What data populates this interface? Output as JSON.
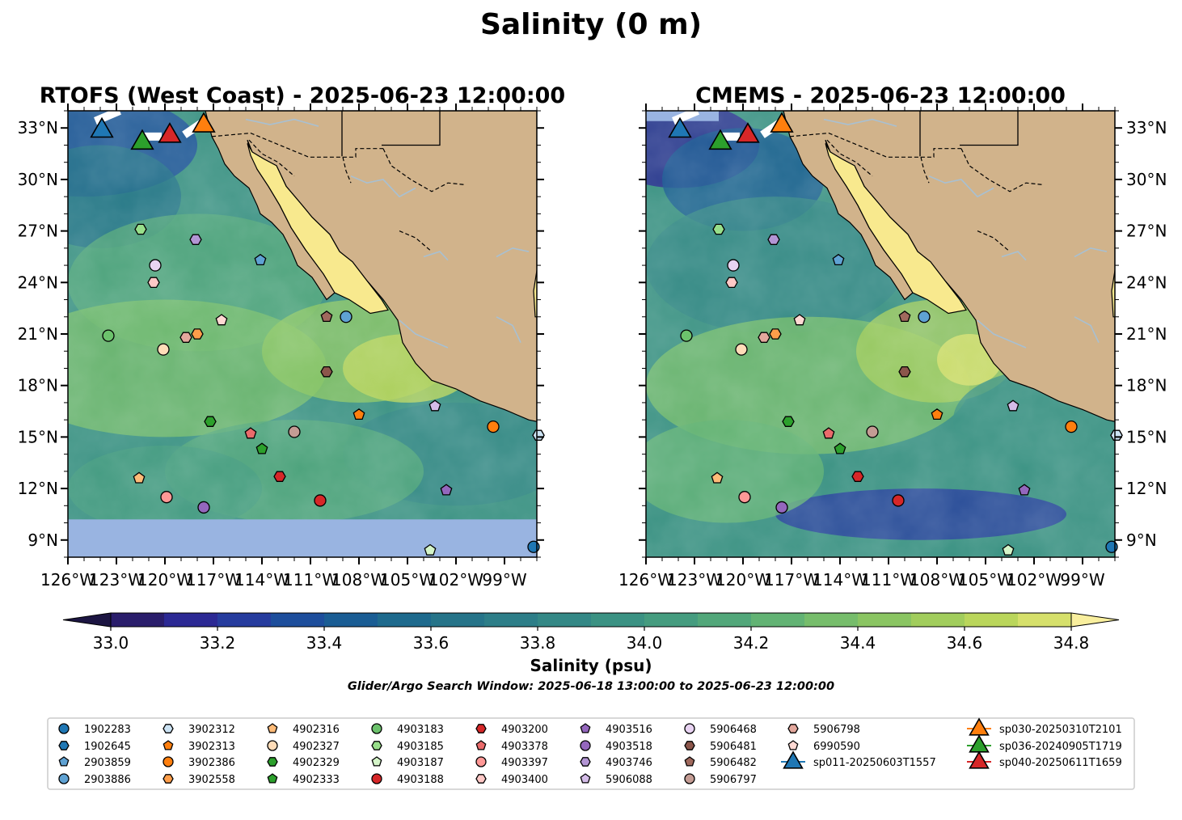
{
  "title": "Salinity (0 m)",
  "panels": [
    {
      "title": "RTOFS (West Coast) - 2025-06-23 12:00:00",
      "model": "rtofs"
    },
    {
      "title": "CMEMS - 2025-06-23 12:00:00",
      "model": "cmems"
    }
  ],
  "colorbar": {
    "label": "Salinity (psu)",
    "ticks": [
      "33.0",
      "33.2",
      "33.4",
      "33.6",
      "33.8",
      "34.0",
      "34.2",
      "34.4",
      "34.6",
      "34.8"
    ],
    "colors": [
      "#2a1d6b",
      "#2c2994",
      "#263c9e",
      "#1d4e9c",
      "#1a5d94",
      "#1e6a8d",
      "#267489",
      "#2d7e88",
      "#348886",
      "#3b9283",
      "#459c7f",
      "#52a77a",
      "#62b374",
      "#76bd6b",
      "#8ac562",
      "#a1cd5c",
      "#bad65b",
      "#d6e06b"
    ],
    "under_color": "#1c1542",
    "over_color": "#f9ef9e"
  },
  "subtitle": "Glider/Argo Search Window: 2025-06-18 13:00:00 to 2025-06-23 12:00:00",
  "colors": {
    "land": "#d1b38b",
    "nodata": "#99b4e1",
    "river": "#a8c0d2",
    "gulf": "#f8e98e"
  },
  "chart_data": {
    "type": "scatter",
    "title": "Salinity (0 m)",
    "xlim": [
      -126,
      -97
    ],
    "ylim": [
      8,
      34
    ],
    "xticks": [
      "126°W",
      "123°W",
      "120°W",
      "117°W",
      "114°W",
      "111°W",
      "108°W",
      "105°W",
      "102°W",
      "99°W"
    ],
    "yticks": [
      "33°N",
      "30°N",
      "27°N",
      "24°N",
      "21°N",
      "18°N",
      "15°N",
      "12°N",
      "9°N"
    ],
    "floats": [
      {
        "id": "1902283",
        "marker": "circle",
        "color": "#1f77b4",
        "lon": -97.2,
        "lat": 8.6
      },
      {
        "id": "1902645",
        "marker": "hexagon",
        "color": "#1f77b4",
        "lon": -96.9,
        "lat": 15.1
      },
      {
        "id": "2903859",
        "marker": "pentagon",
        "color": "#5fa2d3",
        "lon": -114.1,
        "lat": 25.3
      },
      {
        "id": "2903886",
        "marker": "circle",
        "color": "#5fa2d3",
        "lon": -108.8,
        "lat": 22.0
      },
      {
        "id": "3902312",
        "marker": "hexagon",
        "color": "#cce3f4",
        "lon": -96.9,
        "lat": 15.1
      },
      {
        "id": "3902313",
        "marker": "pentagon",
        "color": "#ff7f0e",
        "lon": -108.0,
        "lat": 16.3
      },
      {
        "id": "3902386",
        "marker": "circle",
        "color": "#ff7f0e",
        "lon": -99.7,
        "lat": 15.6
      },
      {
        "id": "3902558",
        "marker": "hexagon",
        "color": "#ff9e4a",
        "lon": -118.0,
        "lat": 21.0
      },
      {
        "id": "4902316",
        "marker": "pentagon",
        "color": "#ffbb78",
        "lon": -121.6,
        "lat": 12.6
      },
      {
        "id": "4902327",
        "marker": "circle",
        "color": "#ffdcb8",
        "lon": -120.1,
        "lat": 20.1
      },
      {
        "id": "4902329",
        "marker": "hexagon",
        "color": "#2ca02c",
        "lon": -117.2,
        "lat": 15.9
      },
      {
        "id": "4902333",
        "marker": "pentagon",
        "color": "#2ca02c",
        "lon": -114.0,
        "lat": 14.3
      },
      {
        "id": "4903183",
        "marker": "circle",
        "color": "#6cc26c",
        "lon": -123.5,
        "lat": 20.9
      },
      {
        "id": "4903185",
        "marker": "hexagon",
        "color": "#98df8a",
        "lon": -121.5,
        "lat": 27.1
      },
      {
        "id": "4903187",
        "marker": "pentagon",
        "color": "#d5f5c9",
        "lon": -103.6,
        "lat": 8.4
      },
      {
        "id": "4903188",
        "marker": "circle",
        "color": "#d62728",
        "lon": -110.4,
        "lat": 11.3
      },
      {
        "id": "4903200",
        "marker": "hexagon",
        "color": "#d62728",
        "lon": -112.9,
        "lat": 12.7
      },
      {
        "id": "4903378",
        "marker": "pentagon",
        "color": "#ea6b6b",
        "lon": -114.7,
        "lat": 15.2
      },
      {
        "id": "4903397",
        "marker": "circle",
        "color": "#ff9896",
        "lon": -119.9,
        "lat": 11.5
      },
      {
        "id": "4903400",
        "marker": "hexagon",
        "color": "#ffc8c6",
        "lon": -120.7,
        "lat": 24.0
      },
      {
        "id": "4903516",
        "marker": "pentagon",
        "color": "#9467bd",
        "lon": -102.6,
        "lat": 11.9
      },
      {
        "id": "4903518",
        "marker": "circle",
        "color": "#9467bd",
        "lon": -117.6,
        "lat": 10.9
      },
      {
        "id": "4903746",
        "marker": "hexagon",
        "color": "#b395d4",
        "lon": -118.1,
        "lat": 26.5
      },
      {
        "id": "5906088",
        "marker": "pentagon",
        "color": "#d4bce8",
        "lon": -103.3,
        "lat": 16.8
      },
      {
        "id": "5906468",
        "marker": "circle",
        "color": "#e8d3f2",
        "lon": -120.6,
        "lat": 25.0
      },
      {
        "id": "5906481",
        "marker": "hexagon",
        "color": "#8c564b",
        "lon": -110.0,
        "lat": 18.8
      },
      {
        "id": "5906482",
        "marker": "pentagon",
        "color": "#a0695d",
        "lon": -110.0,
        "lat": 22.0
      },
      {
        "id": "5906797",
        "marker": "circle",
        "color": "#c49c94",
        "lon": -112.0,
        "lat": 15.3
      },
      {
        "id": "5906798",
        "marker": "hexagon",
        "color": "#e4a89d",
        "lon": -118.7,
        "lat": 20.8
      },
      {
        "id": "6990590",
        "marker": "pentagon",
        "color": "#ffd9d3",
        "lon": -116.5,
        "lat": 21.8
      }
    ],
    "gliders": [
      {
        "id": "sp011-20250603T1557",
        "color": "#1f77b4",
        "lon": -123.9,
        "lat": 32.9
      },
      {
        "id": "sp030-20250310T2101",
        "color": "#ff7f0e",
        "lon": -117.6,
        "lat": 33.2
      },
      {
        "id": "sp036-20240905T1719",
        "color": "#2ca02c",
        "lon": -121.4,
        "lat": 32.2
      },
      {
        "id": "sp040-20250611T1659",
        "color": "#d62728",
        "lon": -119.7,
        "lat": 32.6
      }
    ]
  }
}
